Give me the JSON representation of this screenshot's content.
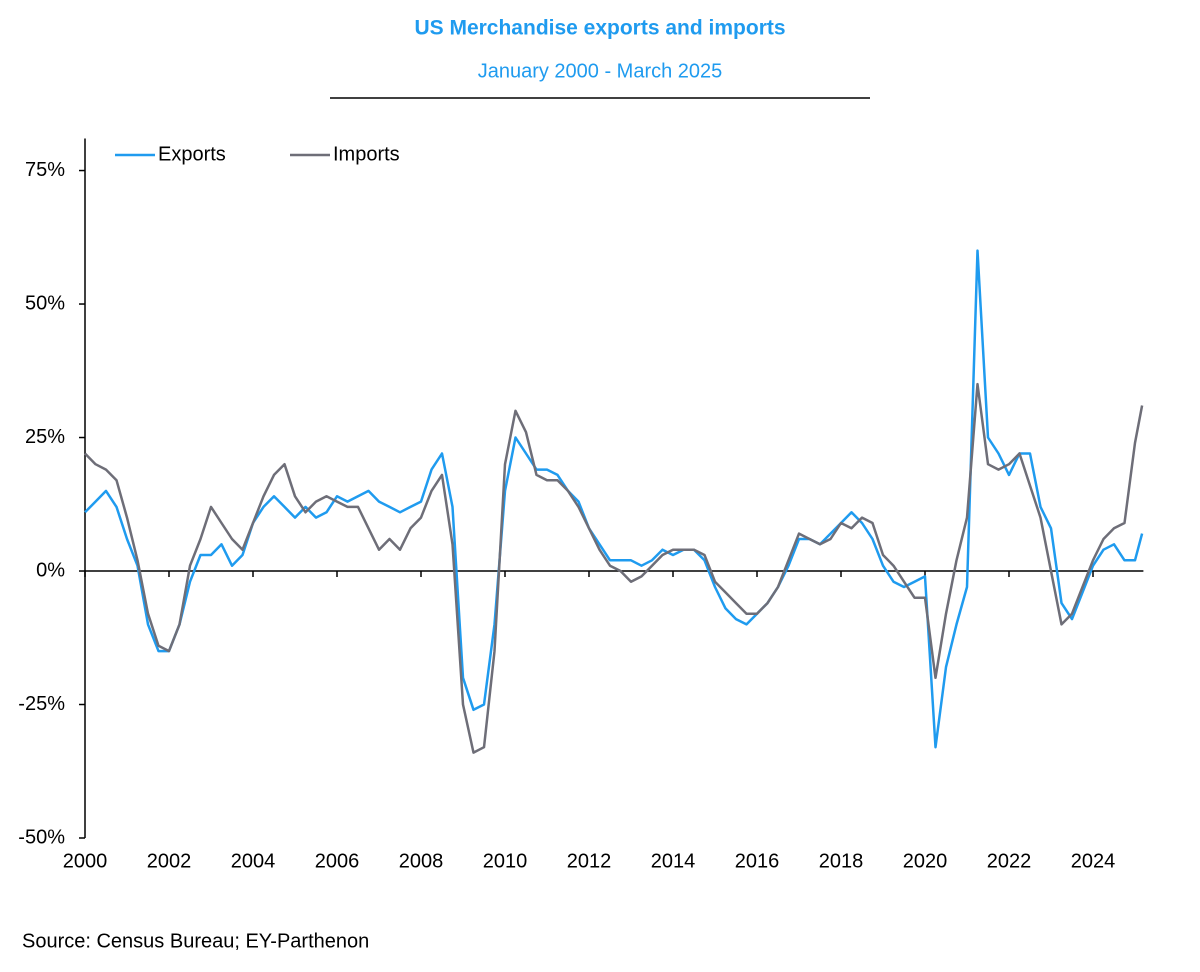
{
  "chart_data": {
    "type": "line",
    "title": "US Merchandise exports and imports",
    "subtitle": "January 2000 - March 2025",
    "source": "Source: Census Bureau; EY-Parthenon",
    "x": [
      2000,
      2000.25,
      2000.5,
      2000.75,
      2001,
      2001.25,
      2001.5,
      2001.75,
      2002,
      2002.25,
      2002.5,
      2002.75,
      2003,
      2003.25,
      2003.5,
      2003.75,
      2004,
      2004.25,
      2004.5,
      2004.75,
      2005,
      2005.25,
      2005.5,
      2005.75,
      2006,
      2006.25,
      2006.5,
      2006.75,
      2007,
      2007.25,
      2007.5,
      2007.75,
      2008,
      2008.25,
      2008.5,
      2008.75,
      2009,
      2009.25,
      2009.5,
      2009.75,
      2010,
      2010.25,
      2010.5,
      2010.75,
      2011,
      2011.25,
      2011.5,
      2011.75,
      2012,
      2012.25,
      2012.5,
      2012.75,
      2013,
      2013.25,
      2013.5,
      2013.75,
      2014,
      2014.25,
      2014.5,
      2014.75,
      2015,
      2015.25,
      2015.5,
      2015.75,
      2016,
      2016.25,
      2016.5,
      2016.75,
      2017,
      2017.25,
      2017.5,
      2017.75,
      2018,
      2018.25,
      2018.5,
      2018.75,
      2019,
      2019.25,
      2019.5,
      2019.75,
      2020,
      2020.25,
      2020.5,
      2020.75,
      2021,
      2021.25,
      2021.5,
      2021.75,
      2022,
      2022.25,
      2022.5,
      2022.75,
      2023,
      2023.25,
      2023.5,
      2023.75,
      2024,
      2024.25,
      2024.5,
      2024.75,
      2025,
      2025.17
    ],
    "series": [
      {
        "name": "Exports",
        "color": "#1f9bef",
        "values": [
          11,
          13,
          15,
          12,
          6,
          1,
          -10,
          -15,
          -15,
          -10,
          -2,
          3,
          3,
          5,
          1,
          3,
          9,
          12,
          14,
          12,
          10,
          12,
          10,
          11,
          14,
          13,
          14,
          15,
          13,
          12,
          11,
          12,
          13,
          19,
          22,
          12,
          -20,
          -26,
          -25,
          -10,
          15,
          25,
          22,
          19,
          19,
          18,
          15,
          13,
          8,
          5,
          2,
          2,
          2,
          1,
          2,
          4,
          3,
          4,
          4,
          2,
          -3,
          -7,
          -9,
          -10,
          -8,
          -6,
          -3,
          1,
          6,
          6,
          5,
          7,
          9,
          11,
          9,
          6,
          1,
          -2,
          -3,
          -2,
          -1,
          -33,
          -18,
          -10,
          -3,
          60,
          25,
          22,
          18,
          22,
          22,
          12,
          8,
          -6,
          -9,
          -4,
          1,
          4,
          5,
          2,
          2,
          7
        ]
      },
      {
        "name": "Imports",
        "color": "#6e6e78",
        "values": [
          22,
          20,
          19,
          17,
          10,
          2,
          -8,
          -14,
          -15,
          -10,
          1,
          6,
          12,
          9,
          6,
          4,
          9,
          14,
          18,
          20,
          14,
          11,
          13,
          14,
          13,
          12,
          12,
          8,
          4,
          6,
          4,
          8,
          10,
          15,
          18,
          5,
          -25,
          -34,
          -33,
          -15,
          20,
          30,
          26,
          18,
          17,
          17,
          15,
          12,
          8,
          4,
          1,
          0,
          -2,
          -1,
          1,
          3,
          4,
          4,
          4,
          3,
          -2,
          -4,
          -6,
          -8,
          -8,
          -6,
          -3,
          2,
          7,
          6,
          5,
          6,
          9,
          8,
          10,
          9,
          3,
          1,
          -2,
          -5,
          -5,
          -20,
          -8,
          2,
          10,
          35,
          20,
          19,
          20,
          22,
          16,
          10,
          0,
          -10,
          -8,
          -3,
          2,
          6,
          8,
          9,
          24,
          31
        ]
      }
    ],
    "xlim": [
      2000,
      2025.2
    ],
    "xticks": [
      2000,
      2002,
      2004,
      2006,
      2008,
      2010,
      2012,
      2014,
      2016,
      2018,
      2020,
      2022,
      2024
    ],
    "ylim": [
      -50,
      81
    ],
    "yticks": [
      {
        "value": -50,
        "label": "-50%"
      },
      {
        "value": -25,
        "label": "-25%"
      },
      {
        "value": 0,
        "label": "0%"
      },
      {
        "value": 25,
        "label": "25%"
      },
      {
        "value": 50,
        "label": "50%"
      },
      {
        "value": 75,
        "label": "75%"
      }
    ],
    "legend": "top-left"
  }
}
